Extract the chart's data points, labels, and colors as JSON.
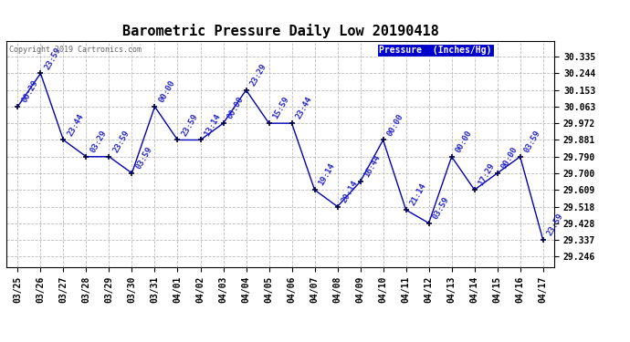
{
  "title": "Barometric Pressure Daily Low 20190418",
  "copyright": "Copyright 2019 Cartronics.com",
  "legend_label": "Pressure  (Inches/Hg)",
  "dates": [
    "03/25",
    "03/26",
    "03/27",
    "03/28",
    "03/29",
    "03/30",
    "03/31",
    "04/01",
    "04/02",
    "04/03",
    "04/04",
    "04/05",
    "04/06",
    "04/07",
    "04/08",
    "04/09",
    "04/10",
    "04/11",
    "04/12",
    "04/13",
    "04/14",
    "04/15",
    "04/16",
    "04/17"
  ],
  "values": [
    30.063,
    30.244,
    29.881,
    29.79,
    29.79,
    29.7,
    30.063,
    29.881,
    29.881,
    29.972,
    30.153,
    29.972,
    29.972,
    29.609,
    29.518,
    29.654,
    29.881,
    29.5,
    29.428,
    29.79,
    29.609,
    29.7,
    29.79,
    29.337
  ],
  "time_labels": [
    "00:29",
    "23:59",
    "23:44",
    "03:29",
    "23:59",
    "03:59",
    "00:00",
    "23:59",
    "13:14",
    "00:00",
    "23:29",
    "15:59",
    "23:44",
    "19:14",
    "20:14",
    "16:44",
    "00:00",
    "21:14",
    "03:59",
    "00:00",
    "17:29",
    "00:00",
    "03:59",
    "23:59"
  ],
  "yticks": [
    29.246,
    29.337,
    29.428,
    29.518,
    29.609,
    29.7,
    29.79,
    29.881,
    29.972,
    30.063,
    30.153,
    30.244,
    30.335
  ],
  "ylim_low": 29.19,
  "ylim_high": 30.42,
  "line_color": "#0000bb",
  "label_color": "#2222cc",
  "bg_color": "#ffffff",
  "grid_color": "#bbbbbb",
  "title_fontsize": 11,
  "tick_fontsize": 7,
  "annot_fontsize": 6.5
}
